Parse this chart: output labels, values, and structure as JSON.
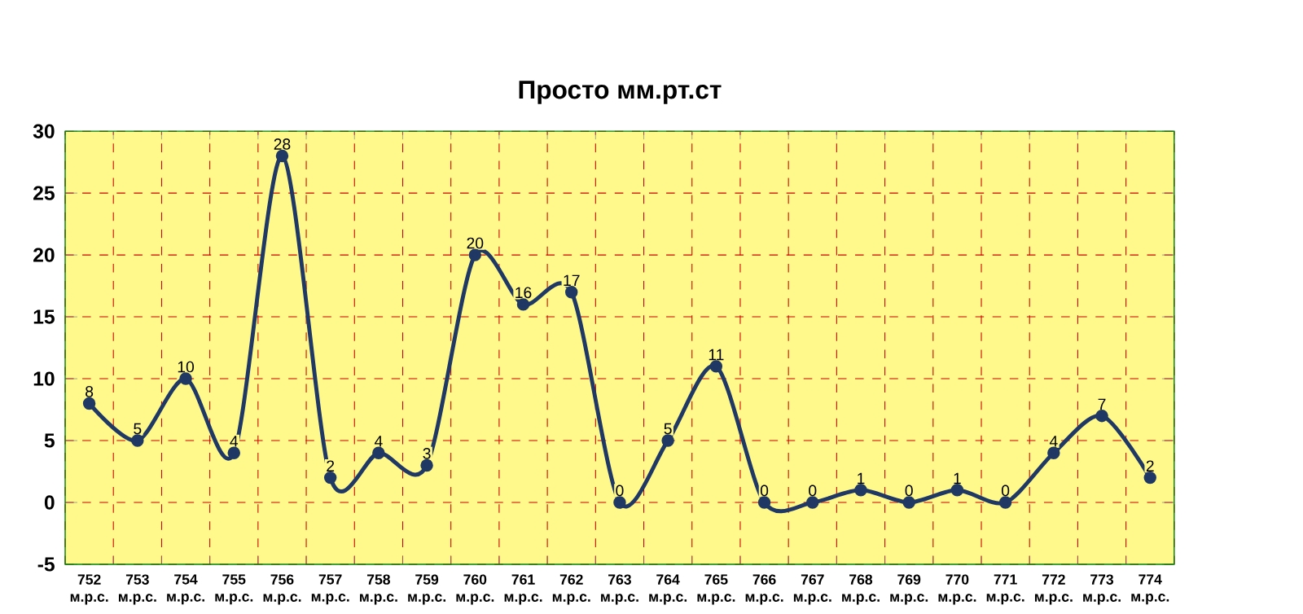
{
  "chart_data": {
    "type": "line",
    "title": "Просто мм.рт.ст",
    "categories": [
      "752 м.р.с.",
      "753 м.р.с.",
      "754 м.р.с.",
      "755 м.р.с.",
      "756 м.р.с.",
      "757 м.р.с.",
      "758 м.р.с.",
      "759 м.р.с.",
      "760 м.р.с.",
      "761 м.р.с.",
      "762 м.р.с.",
      "763 м.р.с.",
      "764 м.р.с.",
      "765 м.р.с.",
      "766 м.р.с.",
      "767 м.р.с.",
      "768 м.р.с.",
      "769 м.р.с.",
      "770 м.р.с.",
      "771 м.р.с.",
      "772 м.р.с.",
      "773 м.р.с.",
      "774 м.р.с."
    ],
    "values": [
      8,
      5,
      10,
      4,
      28,
      2,
      4,
      3,
      20,
      16,
      17,
      0,
      5,
      11,
      0,
      0,
      1,
      0,
      1,
      0,
      4,
      7,
      2
    ],
    "color": "#1f3864",
    "marker": "circle",
    "data_labels": true,
    "grid": true,
    "ylim": [
      -5,
      30
    ],
    "yticks": [
      -5,
      0,
      5,
      10,
      15,
      20,
      25,
      30
    ]
  }
}
